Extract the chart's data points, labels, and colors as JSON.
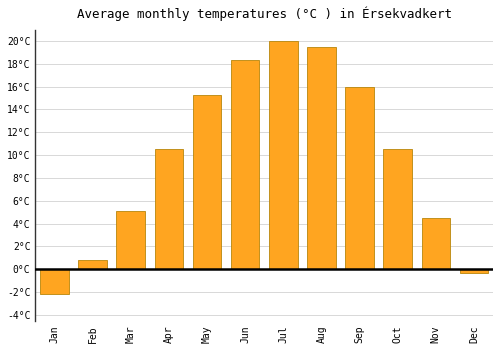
{
  "months": [
    "Jan",
    "Feb",
    "Mar",
    "Apr",
    "May",
    "Jun",
    "Jul",
    "Aug",
    "Sep",
    "Oct",
    "Nov",
    "Dec"
  ],
  "temperatures": [
    -2.2,
    0.8,
    5.1,
    10.5,
    15.3,
    18.3,
    20.0,
    19.5,
    16.0,
    10.5,
    4.5,
    -0.3
  ],
  "bar_color": "#FFA520",
  "bar_edge_color": "#B8860B",
  "title": "Average monthly temperatures (°C ) in Érsekvadkert",
  "ylim": [
    -4.5,
    21
  ],
  "yticks": [
    -4,
    -2,
    0,
    2,
    4,
    6,
    8,
    10,
    12,
    14,
    16,
    18,
    20
  ],
  "background_color": "#ffffff",
  "plot_bg_color": "#ffffff",
  "grid_color": "#d8d8d8",
  "title_fontsize": 9,
  "tick_fontsize": 7,
  "zero_line_color": "#000000",
  "left_spine_color": "#333333"
}
